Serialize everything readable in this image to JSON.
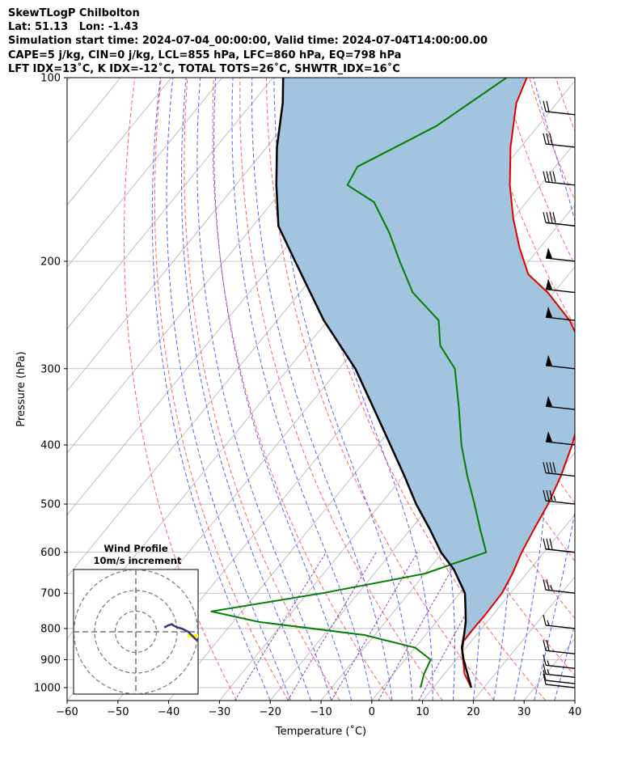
{
  "header": {
    "lines": [
      "SkewTLogP Chilbolton",
      "Lat: 51.13   Lon: -1.43",
      "Simulation start time: 2024-07-04_00:00:00, Valid time: 2024-07-04T14:00:00.00",
      "CAPE=5 j/kg, CIN=0 j/kg, LCL=855 hPa, LFC=860 hPa, EQ=798 hPa",
      "LFT IDX=13˚C, K IDX=-12˚C, TOTAL TOTS=26˚C, SHWTR_IDX=16˚C"
    ]
  },
  "chart_data": {
    "type": "line",
    "xlabel": "Temperature (˚C)",
    "ylabel": "Pressure (hPa)",
    "xlim": [
      -60,
      40
    ],
    "ylim": [
      1050,
      100
    ],
    "y_scale": "log",
    "skew": true,
    "grid": true,
    "x_ticks": [
      "−60",
      "−50",
      "−40",
      "−30",
      "−20",
      "−10",
      "0",
      "10",
      "20",
      "30",
      "40"
    ],
    "x_tick_values": [
      -60,
      -50,
      -40,
      -30,
      -20,
      -10,
      0,
      10,
      20,
      30,
      40
    ],
    "y_ticks": [
      "1000",
      "900",
      "800",
      "700",
      "600",
      "500",
      "400",
      "300",
      "200",
      "100"
    ],
    "y_tick_values": [
      1000,
      900,
      800,
      700,
      600,
      500,
      400,
      300,
      200,
      100
    ],
    "colors": {
      "temperature": "#e00000",
      "dewpoint": "#008000",
      "parcel": "#000000",
      "cape_fill": "#a3c4de",
      "dry_adiabat": "#ff6060",
      "moist_adiabat": "#5560ff",
      "mixing_ratio": "#9040c0",
      "isotherm": "#b0b0b0",
      "hodograph_fill": "#ffff00"
    },
    "series": [
      {
        "key": "temperature",
        "points": [
          [
            17.5,
            1000
          ],
          [
            14,
            950
          ],
          [
            10,
            875
          ],
          [
            8.5,
            840
          ],
          [
            8.4,
            800
          ],
          [
            8.5,
            760
          ],
          [
            8.3,
            700
          ],
          [
            7.2,
            650
          ],
          [
            5.6,
            600
          ],
          [
            4.3,
            550
          ],
          [
            3.0,
            500
          ],
          [
            1.0,
            450
          ],
          [
            -1.8,
            400
          ],
          [
            -5.7,
            350
          ],
          [
            -10.4,
            300
          ],
          [
            -16.0,
            275
          ],
          [
            -22.4,
            250
          ],
          [
            -31.2,
            225
          ],
          [
            -38,
            210
          ],
          [
            -44,
            190
          ],
          [
            -50,
            170
          ],
          [
            -56,
            150
          ],
          [
            -62,
            130
          ],
          [
            -68,
            110
          ],
          [
            -70,
            100
          ]
        ]
      },
      {
        "key": "dewpoint",
        "points": [
          [
            7.5,
            1000
          ],
          [
            6,
            950
          ],
          [
            5,
            900
          ],
          [
            0,
            860
          ],
          [
            -12,
            820
          ],
          [
            -35,
            780
          ],
          [
            -46,
            750
          ],
          [
            -27,
            700
          ],
          [
            -10,
            650
          ],
          [
            -1.4,
            600
          ],
          [
            -6.3,
            550
          ],
          [
            -11.5,
            500
          ],
          [
            -17.4,
            450
          ],
          [
            -23.6,
            400
          ],
          [
            -29.8,
            350
          ],
          [
            -37.2,
            300
          ],
          [
            -43.8,
            275
          ],
          [
            -48.2,
            250
          ],
          [
            -57.8,
            225
          ],
          [
            -65.4,
            200
          ],
          [
            -71.9,
            180
          ],
          [
            -80,
            160
          ],
          [
            -88,
            150
          ],
          [
            -89,
            140
          ],
          [
            -80,
            120
          ],
          [
            -74,
            100
          ]
        ]
      },
      {
        "key": "parcel",
        "points": [
          [
            17.5,
            1000
          ],
          [
            11.5,
            900
          ],
          [
            9.2,
            860
          ],
          [
            7.6,
            820
          ],
          [
            5.8,
            780
          ],
          [
            3.5,
            740
          ],
          [
            1.0,
            700
          ],
          [
            -5.0,
            640
          ],
          [
            -10.3,
            600
          ],
          [
            -16.2,
            550
          ],
          [
            -23.0,
            500
          ],
          [
            -29.8,
            450
          ],
          [
            -37.6,
            400
          ],
          [
            -46.5,
            350
          ],
          [
            -56.8,
            300
          ],
          [
            -70.8,
            250
          ],
          [
            -86,
            200
          ],
          [
            -95,
            175
          ],
          [
            -102,
            150
          ],
          [
            -108,
            130
          ],
          [
            -114,
            110
          ],
          [
            -118,
            100
          ]
        ]
      }
    ],
    "wind_barbs": [
      {
        "p": 1000,
        "knots": 10
      },
      {
        "p": 985,
        "knots": 10
      },
      {
        "p": 962,
        "knots": 15
      },
      {
        "p": 930,
        "knots": 15
      },
      {
        "p": 880,
        "knots": 20
      },
      {
        "p": 800,
        "knots": 15
      },
      {
        "p": 700,
        "knots": 25
      },
      {
        "p": 600,
        "knots": 30
      },
      {
        "p": 500,
        "knots": 35
      },
      {
        "p": 450,
        "knots": 40
      },
      {
        "p": 400,
        "knots": 50
      },
      {
        "p": 350,
        "knots": 50
      },
      {
        "p": 300,
        "knots": 50
      },
      {
        "p": 250,
        "knots": 50
      },
      {
        "p": 225,
        "knots": 50
      },
      {
        "p": 200,
        "knots": 50
      },
      {
        "p": 175,
        "knots": 40
      },
      {
        "p": 150,
        "knots": 40
      },
      {
        "p": 130,
        "knots": 30
      },
      {
        "p": 115,
        "knots": 20
      }
    ],
    "hodograph": {
      "title": "Wind Profile",
      "subtitle": "10m/s increment",
      "rings": [
        10,
        20,
        30
      ],
      "points": [
        [
          26,
          4
        ],
        [
          28,
          5
        ],
        [
          30,
          6
        ],
        [
          33,
          7
        ],
        [
          34,
          6
        ],
        [
          36,
          5
        ],
        [
          38,
          4
        ],
        [
          42,
          3
        ],
        [
          44,
          2
        ],
        [
          48,
          0
        ],
        [
          50,
          -2
        ],
        [
          52,
          -4
        ],
        [
          54,
          -6
        ],
        [
          56,
          -8
        ]
      ]
    }
  }
}
